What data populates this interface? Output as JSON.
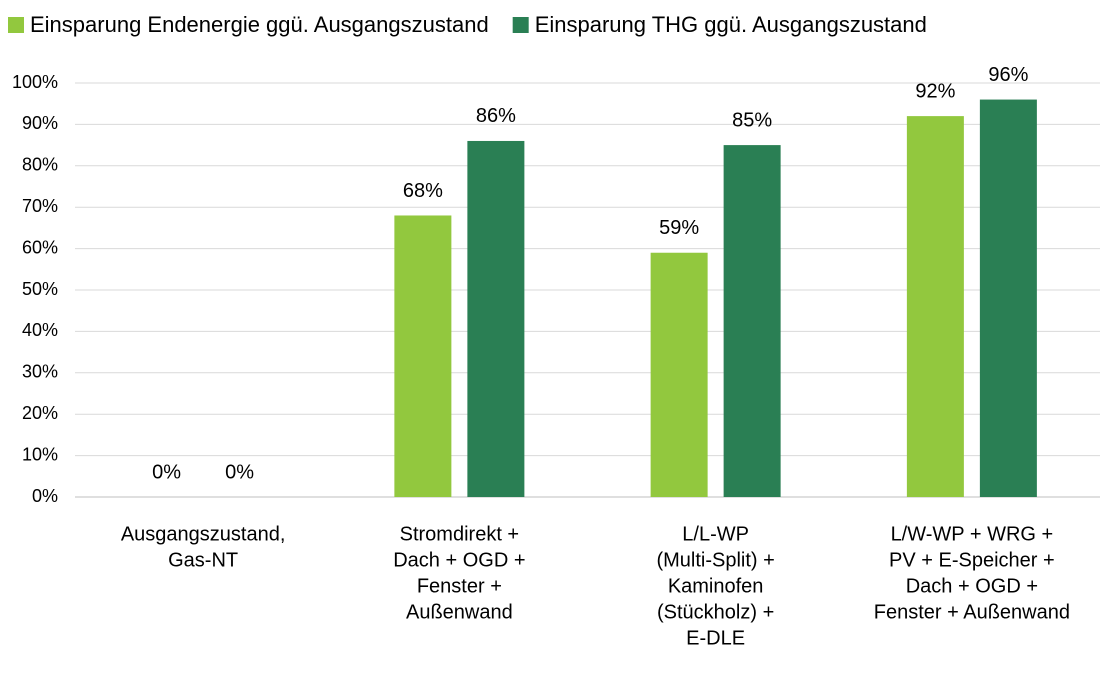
{
  "chart_data": {
    "type": "bar",
    "categories": [
      [
        "Ausgangszustand,",
        "Gas-NT"
      ],
      [
        "Stromdirekt +",
        "Dach + OGD +",
        "Fenster +",
        "Außenwand"
      ],
      [
        "L/L-WP",
        "(Multi-Split) +",
        "Kaminofen",
        "(Stückholz) +",
        "E-DLE"
      ],
      [
        "L/W-WP + WRG +",
        "PV + E-Speicher +",
        "Dach + OGD +",
        "Fenster + Außenwand"
      ]
    ],
    "series": [
      {
        "name": "Einsparung Endenergie ggü. Ausgangszustand",
        "color": "#92c83e",
        "values": [
          0,
          68,
          59,
          92
        ],
        "value_labels": [
          "0%",
          "68%",
          "59%",
          "92%"
        ]
      },
      {
        "name": "Einsparung THG ggü. Ausgangszustand",
        "color": "#2a7f54",
        "values": [
          0,
          86,
          85,
          96
        ],
        "value_labels": [
          "0%",
          "86%",
          "85%",
          "96%"
        ]
      }
    ],
    "ylim": [
      0,
      100
    ],
    "yticks": [
      {
        "value": 0,
        "label": "0%"
      },
      {
        "value": 10,
        "label": "10%"
      },
      {
        "value": 20,
        "label": "20%"
      },
      {
        "value": 30,
        "label": "30%"
      },
      {
        "value": 40,
        "label": "40%"
      },
      {
        "value": 50,
        "label": "50%"
      },
      {
        "value": 60,
        "label": "60%"
      },
      {
        "value": 70,
        "label": "70%"
      },
      {
        "value": 80,
        "label": "80%"
      },
      {
        "value": 90,
        "label": "90%"
      },
      {
        "value": 100,
        "label": "100%"
      }
    ],
    "grid": true,
    "legend": "top"
  }
}
